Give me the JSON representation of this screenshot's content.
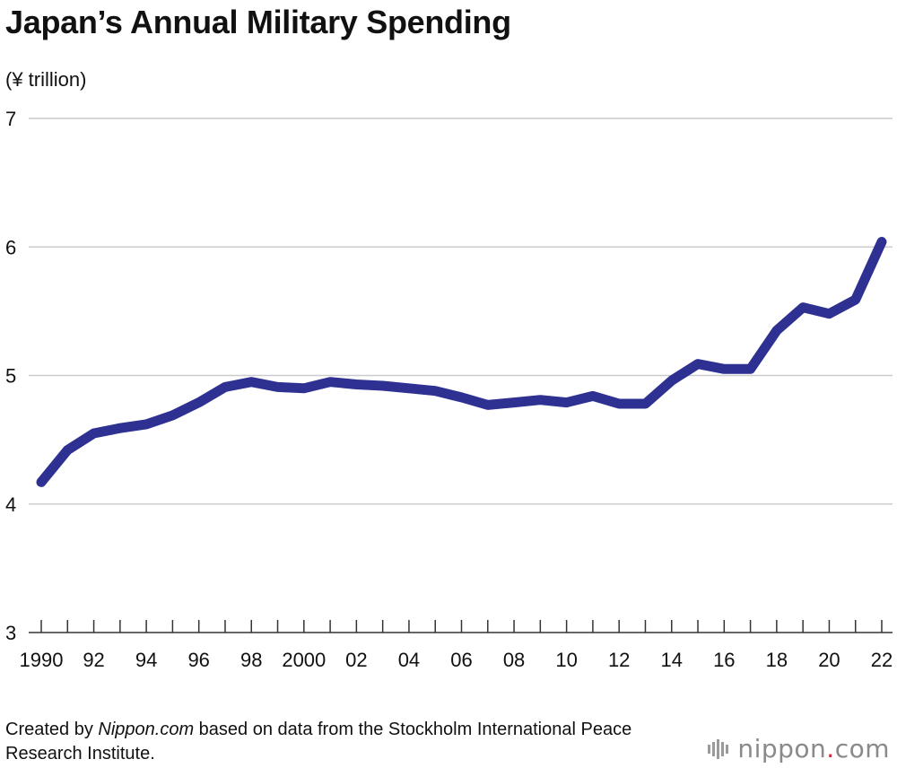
{
  "title": "Japan’s Annual Military Spending",
  "unit_label": "(¥ trillion)",
  "footer": {
    "prefix": "Created by ",
    "site": "Nippon.com",
    "suffix": " based on data from the Stockholm International Peace Research Institute."
  },
  "logo": {
    "word": "nippon",
    "dot": ".",
    "tld": "com"
  },
  "colors": {
    "line": "#2e3192",
    "grid": "#cccccc",
    "text": "#111111"
  },
  "chart_data": {
    "type": "line",
    "title": "Japan’s Annual Military Spending",
    "ylabel": "(¥ trillion)",
    "xlabel": "",
    "ylim": [
      3,
      7
    ],
    "yticks": [
      "3",
      "4",
      "5",
      "6",
      "7"
    ],
    "grid": true,
    "x": [
      1990,
      1991,
      1992,
      1993,
      1994,
      1995,
      1996,
      1997,
      1998,
      1999,
      2000,
      2001,
      2002,
      2003,
      2004,
      2005,
      2006,
      2007,
      2008,
      2009,
      2010,
      2011,
      2012,
      2013,
      2014,
      2015,
      2016,
      2017,
      2018,
      2019,
      2020,
      2021,
      2022
    ],
    "xtick_labels": [
      "1990",
      "92",
      "94",
      "96",
      "98",
      "2000",
      "02",
      "04",
      "06",
      "08",
      "10",
      "12",
      "14",
      "16",
      "18",
      "20",
      "22"
    ],
    "series": [
      {
        "values": [
          4.17,
          4.42,
          4.55,
          4.59,
          4.62,
          4.69,
          4.79,
          4.91,
          4.95,
          4.91,
          4.9,
          4.95,
          4.93,
          4.92,
          4.9,
          4.88,
          4.83,
          4.77,
          4.79,
          4.81,
          4.79,
          4.84,
          4.78,
          4.78,
          4.96,
          5.09,
          5.05,
          5.05,
          5.35,
          5.53,
          5.48,
          5.59,
          6.04
        ]
      }
    ]
  }
}
